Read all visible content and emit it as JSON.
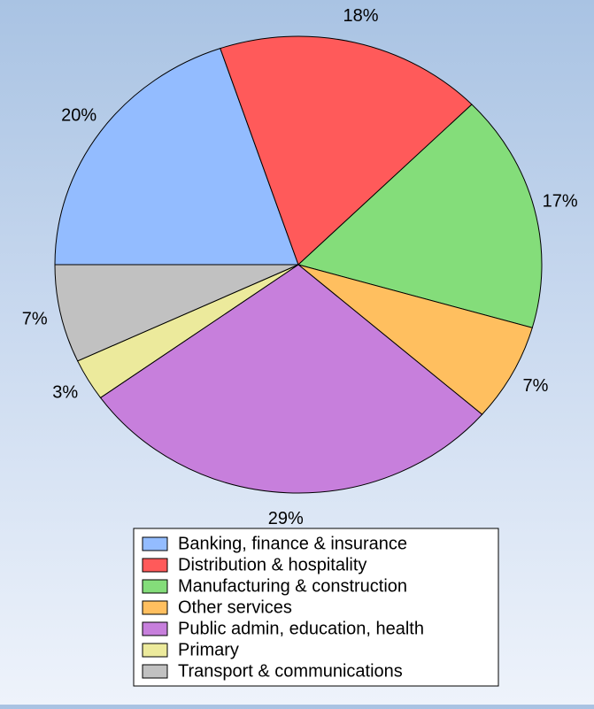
{
  "chart_data": {
    "type": "pie",
    "title": "",
    "slices": [
      {
        "name": "Banking, finance & insurance",
        "value": 20,
        "label": "20%",
        "color": "#93bcff"
      },
      {
        "name": "Distribution & hospitality",
        "value": 18,
        "label": "18%",
        "color": "#ff5a5a"
      },
      {
        "name": "Manufacturing & construction",
        "value": 17,
        "label": "17%",
        "color": "#84dd7a"
      },
      {
        "name": "Other services",
        "value": 7,
        "label": "7%",
        "color": "#ffbf5f"
      },
      {
        "name": "Public admin, education, health",
        "value": 29,
        "label": "29%",
        "color": "#c77fdc"
      },
      {
        "name": "Primary",
        "value": 3,
        "label": "3%",
        "color": "#ecea9c"
      },
      {
        "name": "Transport & communications",
        "value": 7,
        "label": "7%",
        "color": "#c1c1c1"
      }
    ],
    "legend": {
      "position": "bottom"
    }
  }
}
